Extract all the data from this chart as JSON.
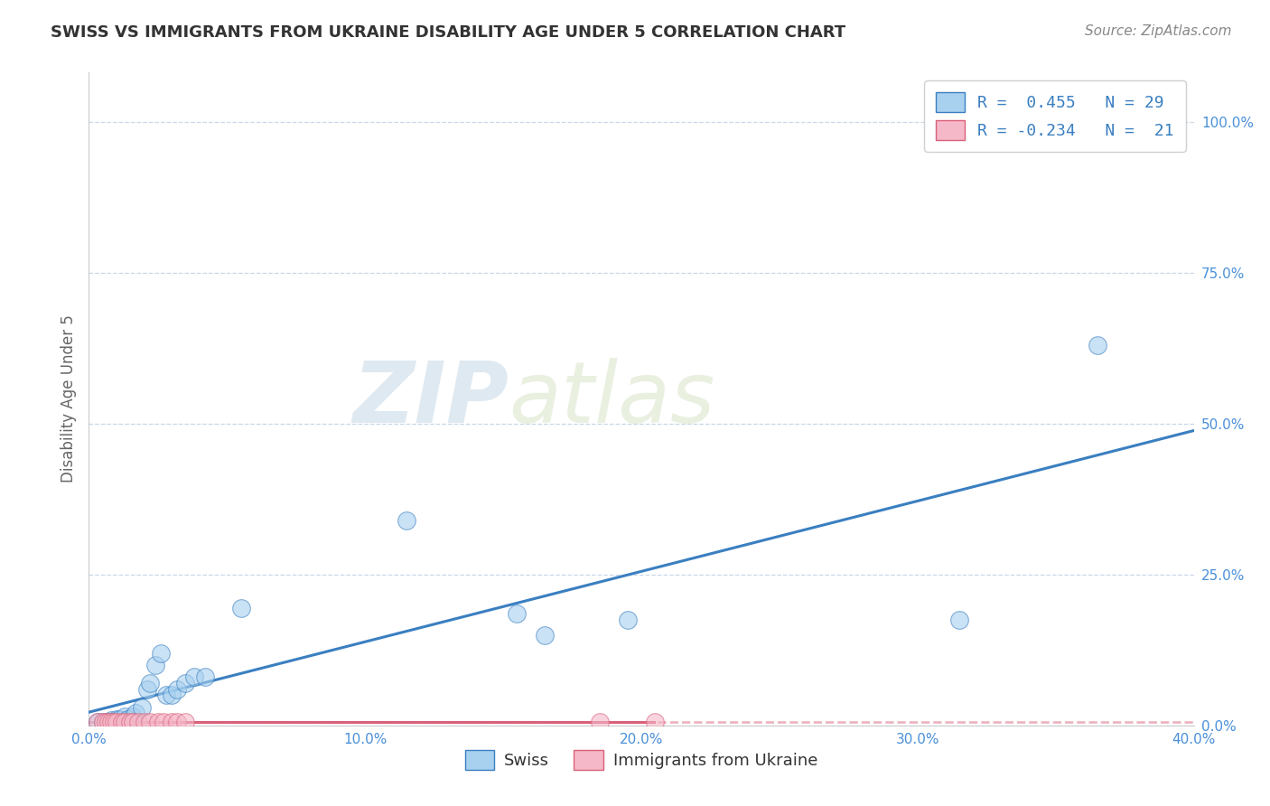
{
  "title": "SWISS VS IMMIGRANTS FROM UKRAINE DISABILITY AGE UNDER 5 CORRELATION CHART",
  "source": "Source: ZipAtlas.com",
  "ylabel": "Disability Age Under 5",
  "xlim": [
    0.0,
    0.4
  ],
  "ylim": [
    0.0,
    1.05
  ],
  "xtick_labels": [
    "0.0%",
    "10.0%",
    "20.0%",
    "30.0%",
    "40.0%"
  ],
  "xtick_values": [
    0.0,
    0.1,
    0.2,
    0.3,
    0.4
  ],
  "ytick_labels": [
    "0.0%",
    "25.0%",
    "50.0%",
    "75.0%",
    "100.0%"
  ],
  "ytick_values": [
    0.0,
    0.25,
    0.5,
    0.75,
    1.0
  ],
  "swiss_color": "#a8d0ef",
  "ukraine_color": "#f5b8c8",
  "swiss_line_color": "#3a7fc1",
  "ukraine_line_color": "#d9607a",
  "watermark_zip": "ZIP",
  "watermark_atlas": "atlas",
  "legend_label1": "R =  0.455   N = 29",
  "legend_label2": "R = -0.234   N =  21",
  "swiss_x": [
    0.003,
    0.005,
    0.007,
    0.008,
    0.009,
    0.01,
    0.011,
    0.013,
    0.014,
    0.016,
    0.017,
    0.019,
    0.021,
    0.022,
    0.024,
    0.026,
    0.028,
    0.03,
    0.032,
    0.035,
    0.038,
    0.042,
    0.055,
    0.115,
    0.155,
    0.165,
    0.195,
    0.315,
    0.365
  ],
  "swiss_y": [
    0.005,
    0.005,
    0.005,
    0.008,
    0.005,
    0.01,
    0.01,
    0.015,
    0.01,
    0.015,
    0.02,
    0.03,
    0.06,
    0.07,
    0.1,
    0.12,
    0.05,
    0.05,
    0.06,
    0.07,
    0.08,
    0.08,
    0.195,
    0.34,
    0.185,
    0.15,
    0.175,
    0.175,
    0.63
  ],
  "ukraine_x": [
    0.003,
    0.005,
    0.006,
    0.007,
    0.008,
    0.009,
    0.01,
    0.012,
    0.013,
    0.015,
    0.016,
    0.018,
    0.02,
    0.022,
    0.025,
    0.027,
    0.03,
    0.032,
    0.035,
    0.185,
    0.205
  ],
  "ukraine_y": [
    0.005,
    0.005,
    0.005,
    0.005,
    0.005,
    0.005,
    0.005,
    0.005,
    0.005,
    0.005,
    0.005,
    0.005,
    0.005,
    0.005,
    0.005,
    0.005,
    0.005,
    0.005,
    0.005,
    0.005,
    0.005
  ],
  "background_color": "#ffffff",
  "grid_color": "#c8d8e8",
  "title_color": "#333333",
  "source_color": "#888888",
  "tick_color": "#4a90d9",
  "ylabel_color": "#666666"
}
